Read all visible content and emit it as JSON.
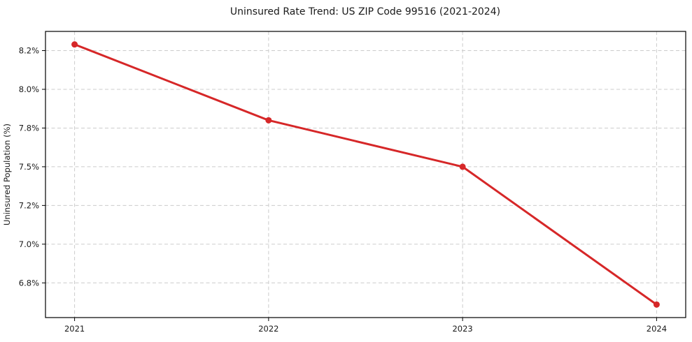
{
  "chart": {
    "title": "Uninsured Rate Trend: US ZIP Code 99516 (2021-2024)",
    "ylabel": "Uninsured Population (%)"
  },
  "chart_data": {
    "type": "line",
    "title": "Uninsured Rate Trend: US ZIP Code 99516 (2021-2024)",
    "xlabel": "",
    "ylabel": "Uninsured Population (%)",
    "x": [
      2021,
      2022,
      2023,
      2024
    ],
    "series": [
      {
        "name": "Uninsured rate",
        "values": [
          8.29,
          7.8,
          7.5,
          6.61
        ]
      }
    ],
    "xticks": {
      "values": [
        2021,
        2022,
        2023,
        2024
      ],
      "labels": [
        "2021",
        "2022",
        "2023",
        "2024"
      ]
    },
    "yticks": {
      "values": [
        8.25,
        8.0,
        7.75,
        7.5,
        7.25,
        7.0,
        6.75
      ],
      "labels": [
        "8.2%",
        "8.0%",
        "7.8%",
        "7.5%",
        "7.2%",
        "7.0%",
        "6.8%"
      ]
    },
    "xlim": [
      2020.85,
      2024.15
    ],
    "ylim": [
      6.526,
      8.374
    ],
    "grid": true,
    "grid_style": "dashed",
    "legend": false,
    "colors": {
      "line": "#d62728",
      "marker": "#d62728",
      "grid": "#cccccc",
      "spine": "#000000",
      "tick": "#000000",
      "text": "#1a1a1a",
      "background": "#ffffff"
    },
    "style": {
      "line_width": 3,
      "marker_radius": 4.5,
      "grid_dash": "5 3.5",
      "spine_width": 1.2,
      "tick_length": 5
    }
  }
}
